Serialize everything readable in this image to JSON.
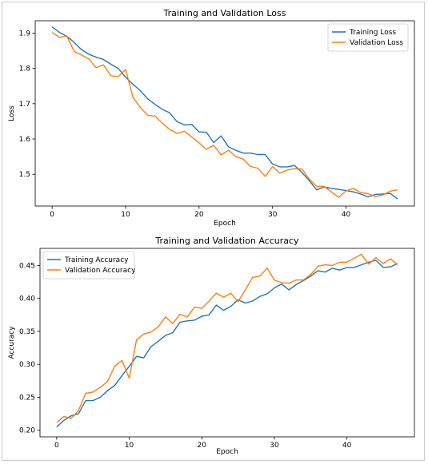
{
  "chart_data": [
    {
      "type": "line",
      "title": "Training and Validation Loss",
      "xlabel": "Epoch",
      "ylabel": "Loss",
      "xlim": [
        -2.3,
        49.3
      ],
      "ylim": [
        1.41,
        1.935
      ],
      "xticks": [
        0,
        10,
        20,
        30,
        40
      ],
      "xtick_labels": [
        "0",
        "10",
        "20",
        "30",
        "40"
      ],
      "yticks": [
        1.5,
        1.6,
        1.7,
        1.8,
        1.9
      ],
      "ytick_labels": [
        "1.5",
        "1.6",
        "1.7",
        "1.8",
        "1.9"
      ],
      "grid": false,
      "legend_position": "upper right",
      "series": [
        {
          "name": "Training Loss",
          "color": "#1f77b4",
          "values": [
            1.918,
            1.902,
            1.891,
            1.874,
            1.853,
            1.84,
            1.832,
            1.825,
            1.812,
            1.8,
            1.775,
            1.755,
            1.737,
            1.714,
            1.698,
            1.684,
            1.674,
            1.649,
            1.64,
            1.641,
            1.62,
            1.619,
            1.59,
            1.609,
            1.578,
            1.568,
            1.56,
            1.56,
            1.556,
            1.556,
            1.529,
            1.521,
            1.521,
            1.525,
            1.505,
            1.482,
            1.456,
            1.464,
            1.46,
            1.457,
            1.454,
            1.45,
            1.444,
            1.436,
            1.443,
            1.444,
            1.446,
            1.43
          ]
        },
        {
          "name": "Validation Loss",
          "color": "#ff7f0e",
          "values": [
            1.902,
            1.888,
            1.892,
            1.848,
            1.838,
            1.827,
            1.802,
            1.81,
            1.779,
            1.777,
            1.797,
            1.718,
            1.69,
            1.667,
            1.665,
            1.645,
            1.627,
            1.616,
            1.622,
            1.606,
            1.589,
            1.571,
            1.582,
            1.555,
            1.568,
            1.55,
            1.543,
            1.522,
            1.517,
            1.494,
            1.522,
            1.503,
            1.512,
            1.516,
            1.515,
            1.486,
            1.466,
            1.466,
            1.45,
            1.435,
            1.453,
            1.46,
            1.448,
            1.445,
            1.437,
            1.441,
            1.452,
            1.456
          ]
        }
      ]
    },
    {
      "type": "line",
      "title": "Training and Validation Accuracy",
      "xlabel": "Epoch",
      "ylabel": "Accuracy",
      "xlim": [
        -2.3,
        49.3
      ],
      "ylim": [
        0.19,
        0.476
      ],
      "xticks": [
        0,
        10,
        20,
        30,
        40
      ],
      "xtick_labels": [
        "0",
        "10",
        "20",
        "30",
        "40"
      ],
      "yticks": [
        0.2,
        0.25,
        0.3,
        0.35,
        0.4,
        0.45
      ],
      "ytick_labels": [
        "0.20",
        "0.25",
        "0.30",
        "0.35",
        "0.40",
        "0.45"
      ],
      "grid": false,
      "legend_position": "upper left",
      "series": [
        {
          "name": "Training Accuracy",
          "color": "#1f77b4",
          "values": [
            0.205,
            0.215,
            0.222,
            0.225,
            0.245,
            0.245,
            0.25,
            0.26,
            0.268,
            0.283,
            0.297,
            0.312,
            0.31,
            0.327,
            0.335,
            0.344,
            0.348,
            0.364,
            0.366,
            0.367,
            0.373,
            0.375,
            0.39,
            0.382,
            0.388,
            0.398,
            0.393,
            0.396,
            0.403,
            0.407,
            0.416,
            0.422,
            0.413,
            0.421,
            0.427,
            0.434,
            0.442,
            0.44,
            0.446,
            0.443,
            0.447,
            0.447,
            0.451,
            0.455,
            0.458,
            0.447,
            0.448,
            0.453
          ]
        },
        {
          "name": "Validation Accuracy",
          "color": "#ff7f0e",
          "values": [
            0.212,
            0.221,
            0.218,
            0.23,
            0.256,
            0.258,
            0.265,
            0.274,
            0.297,
            0.306,
            0.279,
            0.337,
            0.346,
            0.349,
            0.357,
            0.372,
            0.362,
            0.376,
            0.372,
            0.387,
            0.385,
            0.396,
            0.408,
            0.402,
            0.408,
            0.395,
            0.413,
            0.432,
            0.434,
            0.446,
            0.428,
            0.424,
            0.423,
            0.428,
            0.428,
            0.436,
            0.449,
            0.451,
            0.45,
            0.455,
            0.455,
            0.461,
            0.467,
            0.452,
            0.462,
            0.453,
            0.46,
            0.451
          ]
        }
      ]
    }
  ]
}
